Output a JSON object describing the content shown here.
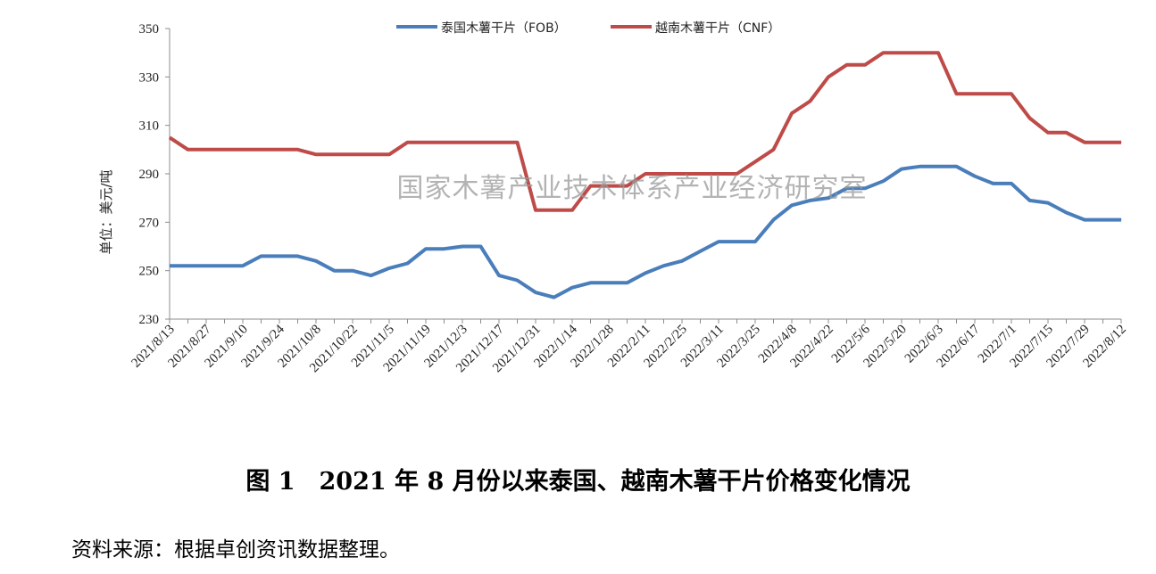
{
  "chart_data": {
    "type": "line",
    "ylabel": "单位：美元/吨",
    "ylim": [
      230,
      350
    ],
    "yticks": [
      230,
      250,
      270,
      290,
      310,
      330,
      350
    ],
    "grid": false,
    "legend_position": "top-center",
    "x_tick_labels": [
      "2021/8/13",
      "2021/8/27",
      "2021/9/10",
      "2021/9/24",
      "2021/10/8",
      "2021/10/22",
      "2021/11/5",
      "2021/11/19",
      "2021/12/3",
      "2021/12/17",
      "2021/12/31",
      "2022/1/14",
      "2022/1/28",
      "2022/2/11",
      "2022/2/25",
      "2022/3/11",
      "2022/3/25",
      "2022/4/8",
      "2022/4/22",
      "2022/5/6",
      "2022/5/20",
      "2022/6/3",
      "2022/6/17",
      "2022/7/1",
      "2022/7/15",
      "2022/7/29",
      "2022/8/12"
    ],
    "x": [
      "2021/8/13",
      "2021/8/20",
      "2021/8/27",
      "2021/9/3",
      "2021/9/10",
      "2021/9/17",
      "2021/9/24",
      "2021/10/1",
      "2021/10/8",
      "2021/10/15",
      "2021/10/22",
      "2021/10/29",
      "2021/11/5",
      "2021/11/12",
      "2021/11/19",
      "2021/11/26",
      "2021/12/3",
      "2021/12/10",
      "2021/12/17",
      "2021/12/24",
      "2021/12/31",
      "2022/1/7",
      "2022/1/14",
      "2022/1/21",
      "2022/1/28",
      "2022/2/4",
      "2022/2/11",
      "2022/2/18",
      "2022/2/25",
      "2022/3/4",
      "2022/3/11",
      "2022/3/18",
      "2022/3/25",
      "2022/4/1",
      "2022/4/8",
      "2022/4/15",
      "2022/4/22",
      "2022/4/29",
      "2022/5/6",
      "2022/5/13",
      "2022/5/20",
      "2022/5/27",
      "2022/6/3",
      "2022/6/10",
      "2022/6/17",
      "2022/6/24",
      "2022/7/1",
      "2022/7/8",
      "2022/7/15",
      "2022/7/22",
      "2022/7/29",
      "2022/8/5",
      "2022/8/12"
    ],
    "series": [
      {
        "name": "泰国木薯干片（FOB）",
        "color": "#4a7ebb",
        "values": [
          252,
          252,
          252,
          252,
          252,
          256,
          256,
          256,
          254,
          250,
          250,
          248,
          251,
          253,
          259,
          259,
          260,
          260,
          248,
          246,
          241,
          239,
          243,
          245,
          245,
          245,
          249,
          252,
          254,
          258,
          262,
          262,
          262,
          271,
          277,
          279,
          280,
          284,
          284,
          287,
          292,
          293,
          293,
          293,
          289,
          286,
          286,
          279,
          278,
          274,
          271,
          271,
          271
        ]
      },
      {
        "name": "越南木薯干片（CNF）",
        "color": "#be4b48",
        "values": [
          305,
          300,
          300,
          300,
          300,
          300,
          300,
          300,
          298,
          298,
          298,
          298,
          298,
          303,
          303,
          303,
          303,
          303,
          303,
          303,
          275,
          275,
          275,
          285,
          285,
          285,
          290,
          290,
          290,
          290,
          290,
          290,
          295,
          300,
          315,
          320,
          330,
          335,
          335,
          340,
          340,
          340,
          340,
          323,
          323,
          323,
          323,
          313,
          307,
          307,
          303,
          303,
          303
        ]
      }
    ]
  },
  "watermark": "国家木薯产业技术体系产业经济研究室",
  "caption": "图 1　2021 年 8 月份以来泰国、越南木薯干片价格变化情况",
  "source_note": "资料来源：根据卓创资讯数据整理。"
}
